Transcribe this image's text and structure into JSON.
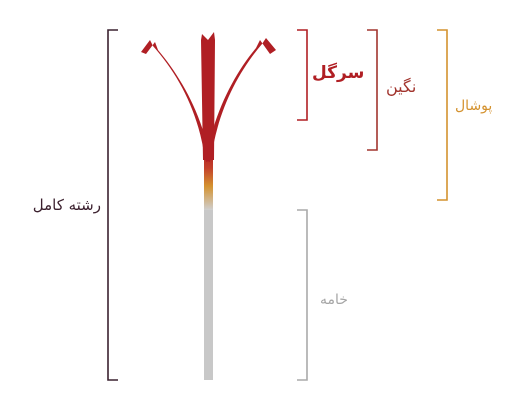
{
  "labels": {
    "full_strand": "رشته کامل",
    "stigma_tip": "سرگل",
    "negin": "نگین",
    "pushal": "پوشال",
    "style": "خامه"
  },
  "colors": {
    "saffron_red": "#b01f24",
    "negin_bracket": "#a2352e",
    "pushal_orange": "#d4922f",
    "style_gray": "#c8c8c8",
    "style_label_gray": "#a5a5a5",
    "full_bracket_dark": "#3b2230",
    "full_label_dark": "#3a1f2d"
  }
}
